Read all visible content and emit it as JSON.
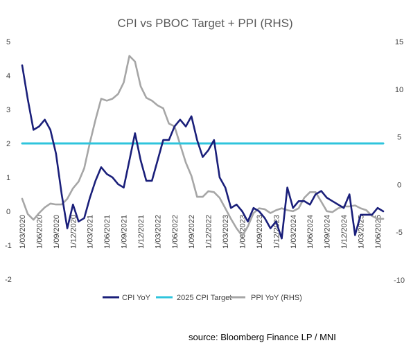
{
  "chart_data": {
    "type": "line",
    "title": "CPI vs PBOC Target +   PPI (RHS)",
    "source": "source: Bloomberg Finance LP / MNI",
    "x": [
      "1/03/2020",
      "1/04/2020",
      "1/05/2020",
      "1/06/2020",
      "1/07/2020",
      "1/08/2020",
      "1/09/2020",
      "1/10/2020",
      "1/11/2020",
      "1/12/2020",
      "1/01/2021",
      "1/02/2021",
      "1/03/2021",
      "1/04/2021",
      "1/05/2021",
      "1/06/2021",
      "1/07/2021",
      "1/08/2021",
      "1/09/2021",
      "1/10/2021",
      "1/11/2021",
      "1/12/2021",
      "1/01/2022",
      "1/02/2022",
      "1/03/2022",
      "1/04/2022",
      "1/05/2022",
      "1/06/2022",
      "1/07/2022",
      "1/08/2022",
      "1/09/2022",
      "1/10/2022",
      "1/11/2022",
      "1/12/2022",
      "1/01/2023",
      "1/02/2023",
      "1/03/2023",
      "1/04/2023",
      "1/05/2023",
      "1/06/2023",
      "1/07/2023",
      "1/08/2023",
      "1/09/2023",
      "1/10/2023",
      "1/11/2023",
      "1/12/2023",
      "1/01/2024",
      "1/02/2024",
      "1/03/2024",
      "1/04/2024",
      "1/05/2024",
      "1/06/2024",
      "1/07/2024",
      "1/08/2024",
      "1/09/2024",
      "1/10/2024",
      "1/11/2024",
      "1/12/2024",
      "1/01/2025",
      "1/02/2025",
      "1/03/2025",
      "1/04/2025",
      "1/05/2025",
      "1/06/2025",
      "1/07/2025"
    ],
    "x_tick_labels": [
      "1/03/2020",
      "1/06/2020",
      "1/09/2020",
      "1/12/2020",
      "1/03/2021",
      "1/06/2021",
      "1/09/2021",
      "1/12/2021",
      "1/03/2022",
      "1/06/2022",
      "1/09/2022",
      "1/12/2022",
      "1/03/2023",
      "1/06/2023",
      "1/09/2023",
      "1/12/2023",
      "1/03/2024",
      "1/06/2024",
      "1/09/2024",
      "1/12/2024",
      "1/03/2025",
      "1/06/2025"
    ],
    "y_left": {
      "min": -2,
      "max": 5,
      "ticks": [
        "-2",
        "-1",
        "0",
        "1",
        "2",
        "3",
        "4",
        "5"
      ]
    },
    "y_right": {
      "min": -10,
      "max": 15,
      "ticks": [
        "-10",
        "-5",
        "0",
        "5",
        "10",
        "15"
      ]
    },
    "series": [
      {
        "name": "CPI YoY",
        "axis": "left",
        "color": "#1a1f7a",
        "values": [
          4.3,
          3.3,
          2.4,
          2.5,
          2.7,
          2.4,
          1.7,
          0.5,
          -0.5,
          0.2,
          -0.3,
          -0.2,
          0.4,
          0.9,
          1.3,
          1.1,
          1.0,
          0.8,
          0.7,
          1.5,
          2.3,
          1.5,
          0.9,
          0.9,
          1.5,
          2.1,
          2.1,
          2.5,
          2.7,
          2.5,
          2.8,
          2.1,
          1.6,
          1.8,
          2.1,
          1.0,
          0.7,
          0.1,
          0.2,
          0.0,
          -0.3,
          0.1,
          0.0,
          -0.2,
          -0.5,
          -0.3,
          -0.8,
          0.7,
          0.1,
          0.3,
          0.3,
          0.2,
          0.5,
          0.6,
          0.4,
          0.3,
          0.2,
          0.1,
          0.5,
          -0.7,
          -0.1,
          -0.1,
          -0.1,
          0.1,
          0.0
        ]
      },
      {
        "name": "2025 CPI Target",
        "axis": "left",
        "color": "#2ec4dc",
        "values": [
          2.0,
          2.0,
          2.0,
          2.0,
          2.0,
          2.0,
          2.0,
          2.0,
          2.0,
          2.0,
          2.0,
          2.0,
          2.0,
          2.0,
          2.0,
          2.0,
          2.0,
          2.0,
          2.0,
          2.0,
          2.0,
          2.0,
          2.0,
          2.0,
          2.0,
          2.0,
          2.0,
          2.0,
          2.0,
          2.0,
          2.0,
          2.0,
          2.0,
          2.0,
          2.0,
          2.0,
          2.0,
          2.0,
          2.0,
          2.0,
          2.0,
          2.0,
          2.0,
          2.0,
          2.0,
          2.0,
          2.0,
          2.0,
          2.0,
          2.0,
          2.0,
          2.0,
          2.0,
          2.0,
          2.0,
          2.0,
          2.0,
          2.0,
          2.0,
          2.0,
          2.0,
          2.0,
          2.0,
          2.0,
          2.0
        ]
      },
      {
        "name": "PPI YoY (RHS)",
        "axis": "right",
        "color": "#a6a6a6",
        "values": [
          -1.5,
          -3.1,
          -3.7,
          -3.0,
          -2.4,
          -2.0,
          -2.1,
          -2.1,
          -1.5,
          -0.4,
          0.3,
          1.7,
          4.4,
          6.8,
          9.0,
          8.8,
          9.0,
          9.5,
          10.7,
          13.5,
          12.9,
          10.3,
          9.1,
          8.8,
          8.3,
          8.0,
          6.4,
          6.1,
          4.2,
          2.3,
          0.9,
          -1.3,
          -1.3,
          -0.7,
          -0.8,
          -1.4,
          -2.5,
          -3.6,
          -4.6,
          -5.4,
          -4.4,
          -3.0,
          -2.5,
          -2.6,
          -3.0,
          -2.7,
          -2.5,
          -2.7,
          -2.8,
          -2.5,
          -1.4,
          -0.8,
          -0.8,
          -1.8,
          -2.8,
          -2.9,
          -2.5,
          -2.3,
          -2.3,
          -2.2,
          -2.5,
          -2.7,
          -3.3,
          -3.6,
          -3.6
        ]
      }
    ],
    "legend": {
      "position": "bottom",
      "labels": [
        "CPI YoY",
        "2025 CPI Target",
        "PPI YoY (RHS)"
      ]
    },
    "grid": false
  }
}
